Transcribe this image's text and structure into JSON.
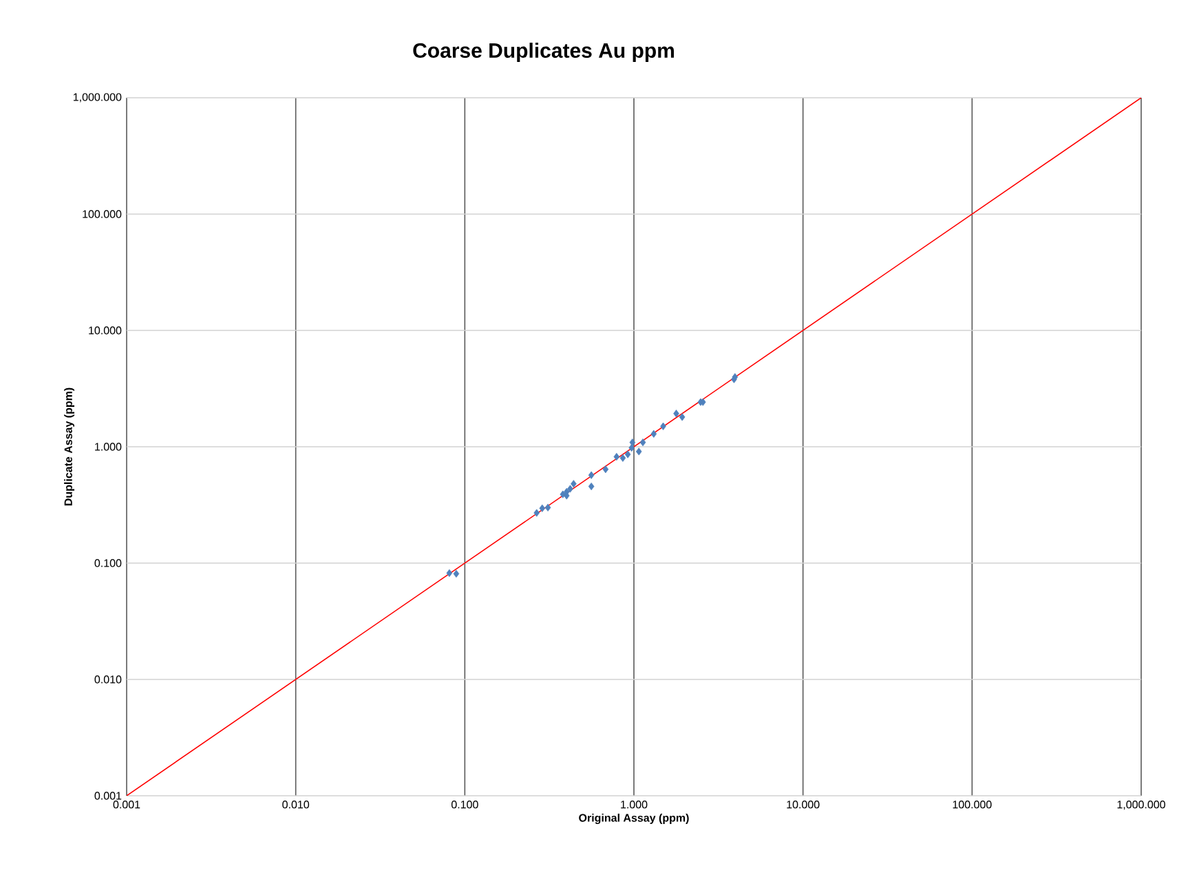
{
  "chart_data": {
    "type": "scatter",
    "title": "Coarse Duplicates Au ppm",
    "xlabel": "Original Assay (ppm)",
    "ylabel": "Duplicate Assay (ppm)",
    "log": "xy",
    "grid": true,
    "xlim": [
      0.001,
      1000
    ],
    "ylim": [
      0.001,
      1000
    ],
    "xticks": [
      {
        "value": 0.001,
        "label": "0.001"
      },
      {
        "value": 0.01,
        "label": "0.010"
      },
      {
        "value": 0.1,
        "label": "0.100"
      },
      {
        "value": 1,
        "label": "1.000"
      },
      {
        "value": 10,
        "label": "10.000"
      },
      {
        "value": 100,
        "label": "100.000"
      },
      {
        "value": 1000,
        "label": "1,000.000"
      }
    ],
    "yticks": [
      {
        "value": 0.001,
        "label": "0.001"
      },
      {
        "value": 0.01,
        "label": "0.010"
      },
      {
        "value": 0.1,
        "label": "0.100"
      },
      {
        "value": 1,
        "label": "1.000"
      },
      {
        "value": 10,
        "label": "10.000"
      },
      {
        "value": 100,
        "label": "100.000"
      },
      {
        "value": 1000,
        "label": "1,000.000"
      }
    ],
    "series": [
      {
        "marker": "diamond",
        "color": "#4f81bd",
        "x": [
          0.081,
          0.089,
          0.266,
          0.287,
          0.31,
          0.38,
          0.4,
          0.42,
          0.44,
          0.4,
          0.56,
          0.56,
          0.68,
          0.79,
          0.86,
          0.92,
          0.98,
          0.97,
          1.07,
          1.13,
          1.31,
          1.49,
          1.78,
          1.93,
          2.56,
          2.48,
          3.96,
          3.91
        ],
        "values": [
          0.082,
          0.081,
          0.27,
          0.296,
          0.3,
          0.39,
          0.38,
          0.435,
          0.48,
          0.41,
          0.57,
          0.456,
          0.64,
          0.82,
          0.8,
          0.86,
          1.09,
          0.98,
          0.91,
          1.09,
          1.29,
          1.5,
          1.93,
          1.8,
          2.42,
          2.42,
          3.98,
          3.8
        ]
      },
      {
        "type": "line",
        "marker": "none",
        "color": "#ff0000",
        "x": [
          0.001,
          1000
        ],
        "values": [
          0.001,
          1000
        ]
      }
    ]
  }
}
